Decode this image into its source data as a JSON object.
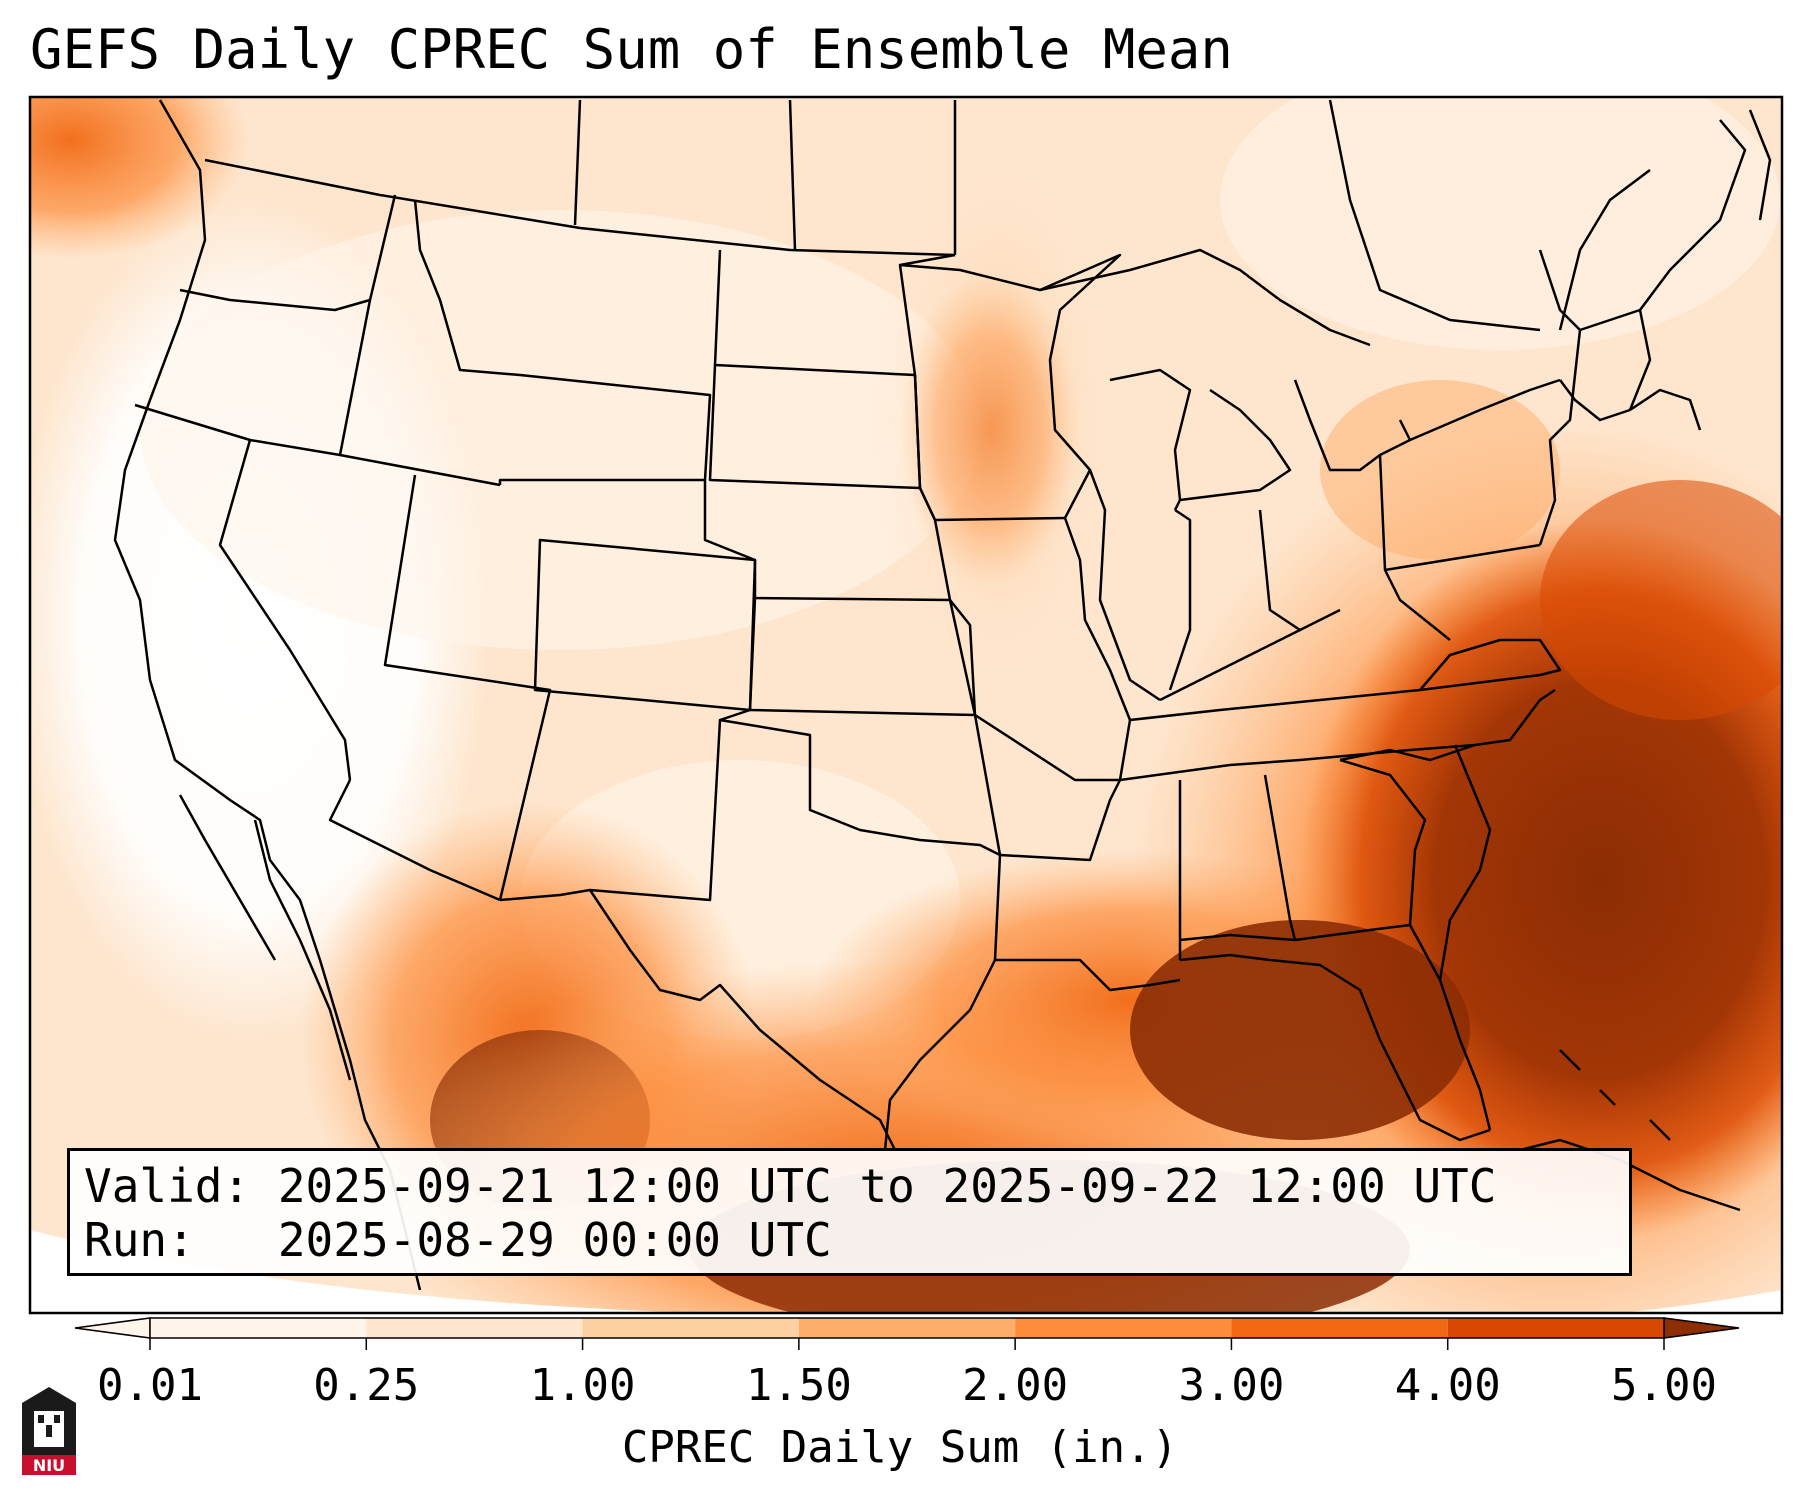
{
  "title": "GEFS Daily CPREC Sum of Ensemble Mean",
  "info": {
    "valid_line": "Valid: 2025-09-21 12:00 UTC to 2025-09-22 12:00 UTC",
    "run_line": "Run:   2025-08-29 00:00 UTC"
  },
  "colorbar": {
    "title": "CPREC Daily Sum (in.)",
    "ticks": [
      "0.01",
      "0.25",
      "1.00",
      "1.50",
      "2.00",
      "3.00",
      "4.00",
      "5.00"
    ],
    "colors": [
      "#fff5eb",
      "#fee6ce",
      "#fdd0a2",
      "#fdae6b",
      "#fd8d3c",
      "#f16913",
      "#d94801",
      "#8c2d04"
    ]
  },
  "logo": {
    "text": "NIU",
    "color": "#c8102e"
  }
}
